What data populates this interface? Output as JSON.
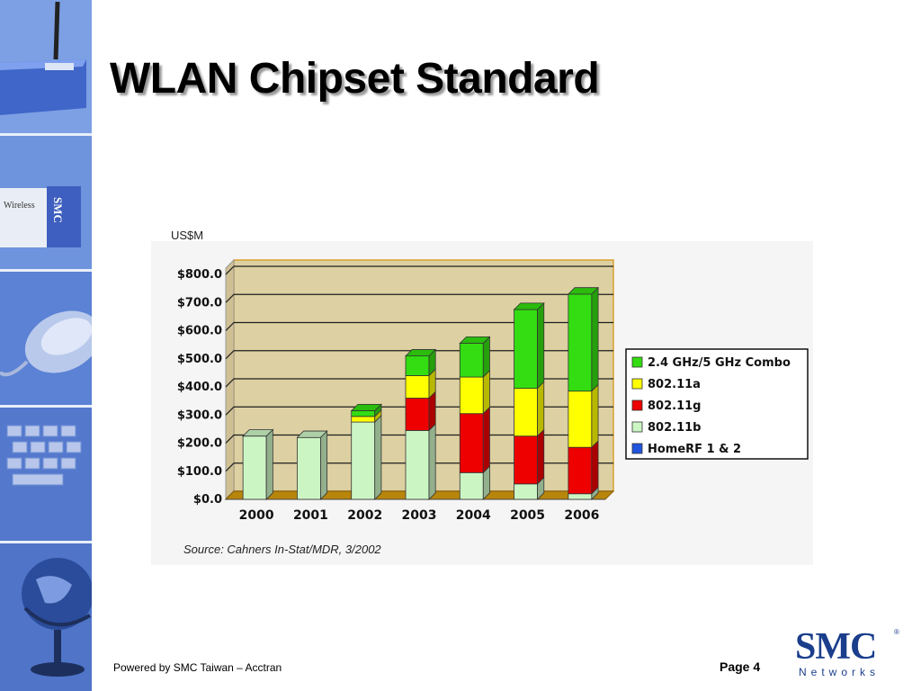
{
  "slide": {
    "title": "WLAN Chipset Standard",
    "unit_label": "US$M",
    "source": "Source: Cahners In-Stat/MDR, 3/2002",
    "footer_left": "Powered by SMC Taiwan – Acctran",
    "page": "Page 4",
    "logo_main": "SMC",
    "logo_sub": "Networks",
    "logo_mark": "®"
  },
  "sidebar": {
    "tiles": [
      "router-image",
      "wireless-card-image",
      "mouse-image",
      "keyboard-image",
      "globe-image"
    ],
    "card_text": "Wireless",
    "card_brand": "SMC"
  },
  "chart_data": {
    "type": "bar",
    "stacked": true,
    "categories": [
      "2000",
      "2001",
      "2002",
      "2003",
      "2004",
      "2005",
      "2006"
    ],
    "series": [
      {
        "name": "HomeRF 1 & 2",
        "color": "#2255dd",
        "values": [
          0,
          0,
          0,
          0,
          0,
          0,
          0
        ]
      },
      {
        "name": "802.11b",
        "color": "#ccf5c4",
        "values": [
          225,
          220,
          275,
          245,
          95,
          55,
          20
        ]
      },
      {
        "name": "802.11g",
        "color": "#ee0000",
        "values": [
          0,
          0,
          0,
          115,
          210,
          170,
          165
        ]
      },
      {
        "name": "802.11a",
        "color": "#ffff00",
        "values": [
          0,
          0,
          20,
          80,
          130,
          170,
          200
        ]
      },
      {
        "name": "2.4 GHz/5 GHz Combo",
        "color": "#33dd11",
        "values": [
          0,
          0,
          20,
          70,
          120,
          280,
          345
        ]
      }
    ],
    "legend_order": [
      "2.4 GHz/5 GHz Combo",
      "802.11a",
      "802.11g",
      "802.11b",
      "HomeRF 1 & 2"
    ],
    "ytick_labels": [
      "$0.0",
      "$100.0",
      "$200.0",
      "$300.0",
      "$400.0",
      "$500.0",
      "$600.0",
      "$700.0",
      "$800.0"
    ],
    "ylim": [
      0,
      800
    ],
    "grid": true,
    "legend_position": "right"
  }
}
